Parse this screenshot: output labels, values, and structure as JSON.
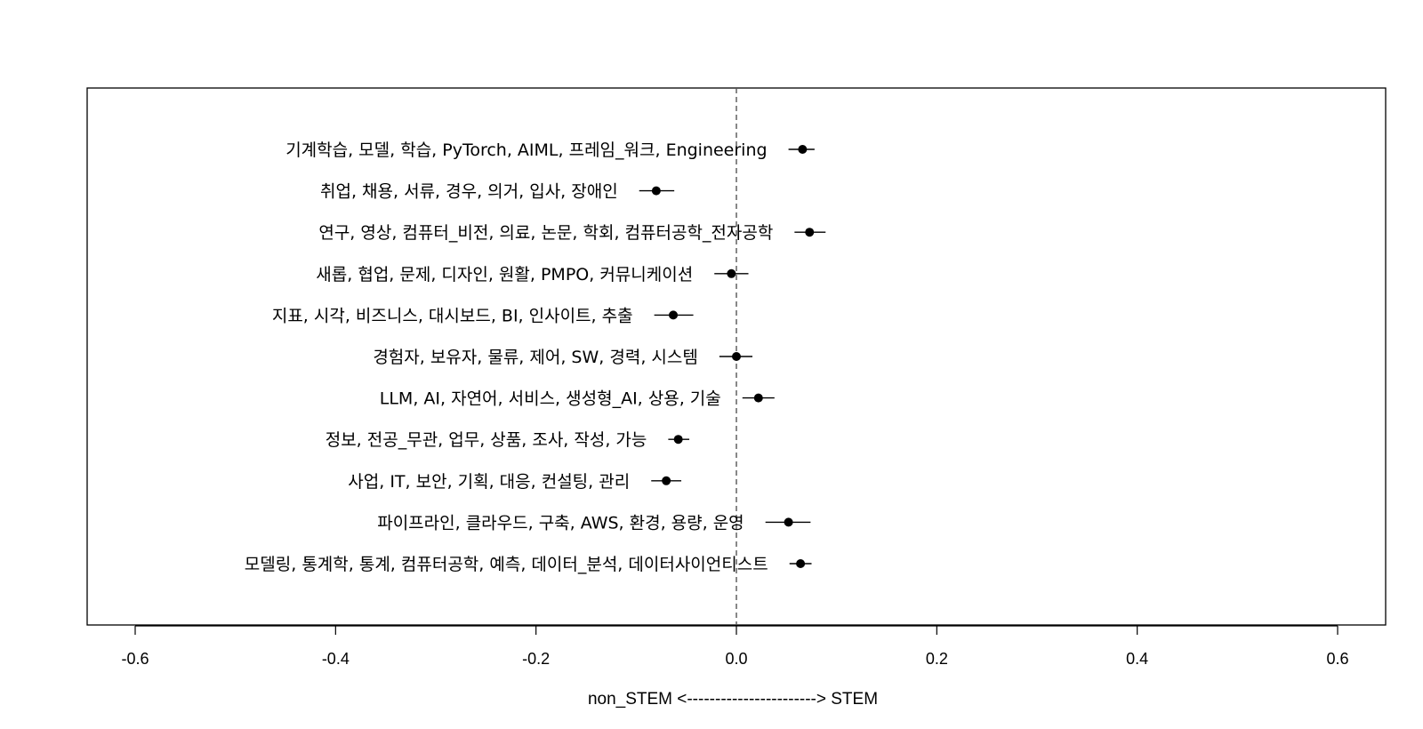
{
  "chart_data": {
    "type": "scatter",
    "subtype": "coefficient-plot with horizontal error bars",
    "xlabel": "non_STEM <-----------------------> STEM",
    "xlim": [
      -0.6,
      0.6
    ],
    "x_ticks": [
      "-0.6",
      "-0.4",
      "-0.2",
      "0.0",
      "0.2",
      "0.4",
      "0.6"
    ],
    "x_tick_values": [
      -0.6,
      -0.4,
      -0.2,
      0.0,
      0.2,
      0.4,
      0.6
    ],
    "reference_line_x": 0.0,
    "grid": false,
    "points": [
      {
        "label": "기계학습, 모델, 학습, PyTorch, AIML, 프레임_워크, Engineering",
        "value": 0.066,
        "lower": 0.052,
        "upper": 0.078
      },
      {
        "label": "취업, 채용, 서류, 경우, 의거, 입사, 장애인",
        "value": -0.08,
        "lower": -0.097,
        "upper": -0.062
      },
      {
        "label": "연구, 영상, 컴퓨터_비전, 의료, 논문, 학회, 컴퓨터공학_전자공학",
        "value": 0.073,
        "lower": 0.058,
        "upper": 0.089
      },
      {
        "label": "새롭, 협업, 문제, 디자인, 원활, PMPO, 커뮤니케이션",
        "value": -0.005,
        "lower": -0.022,
        "upper": 0.012
      },
      {
        "label": "지표, 시각, 비즈니스, 대시보드, BI, 인사이트, 추출",
        "value": -0.063,
        "lower": -0.082,
        "upper": -0.043
      },
      {
        "label": "경험자, 보유자, 물류, 제어, SW, 경력, 시스템",
        "value": 0.0,
        "lower": -0.017,
        "upper": 0.016
      },
      {
        "label": "LLM, AI, 자연어, 서비스, 생성형_AI, 상용, 기술",
        "value": 0.022,
        "lower": 0.006,
        "upper": 0.038
      },
      {
        "label": "정보, 전공_무관, 업무, 상품, 조사, 작성, 가능",
        "value": -0.058,
        "lower": -0.068,
        "upper": -0.047
      },
      {
        "label": "사업, IT, 보안, 기획, 대응, 컨설팅, 관리",
        "value": -0.07,
        "lower": -0.085,
        "upper": -0.055
      },
      {
        "label": "파이프라인, 클라우드, 구축, AWS, 환경, 용량, 운영",
        "value": 0.052,
        "lower": 0.029,
        "upper": 0.074
      },
      {
        "label": "모델링, 통계학, 통계, 컴퓨터공학, 예측, 데이터_분석, 데이터사이언티스트",
        "value": 0.064,
        "lower": 0.053,
        "upper": 0.075
      }
    ],
    "colors": {
      "marker": "#000000",
      "reference_line": "#555555",
      "frame": "#000000"
    }
  }
}
